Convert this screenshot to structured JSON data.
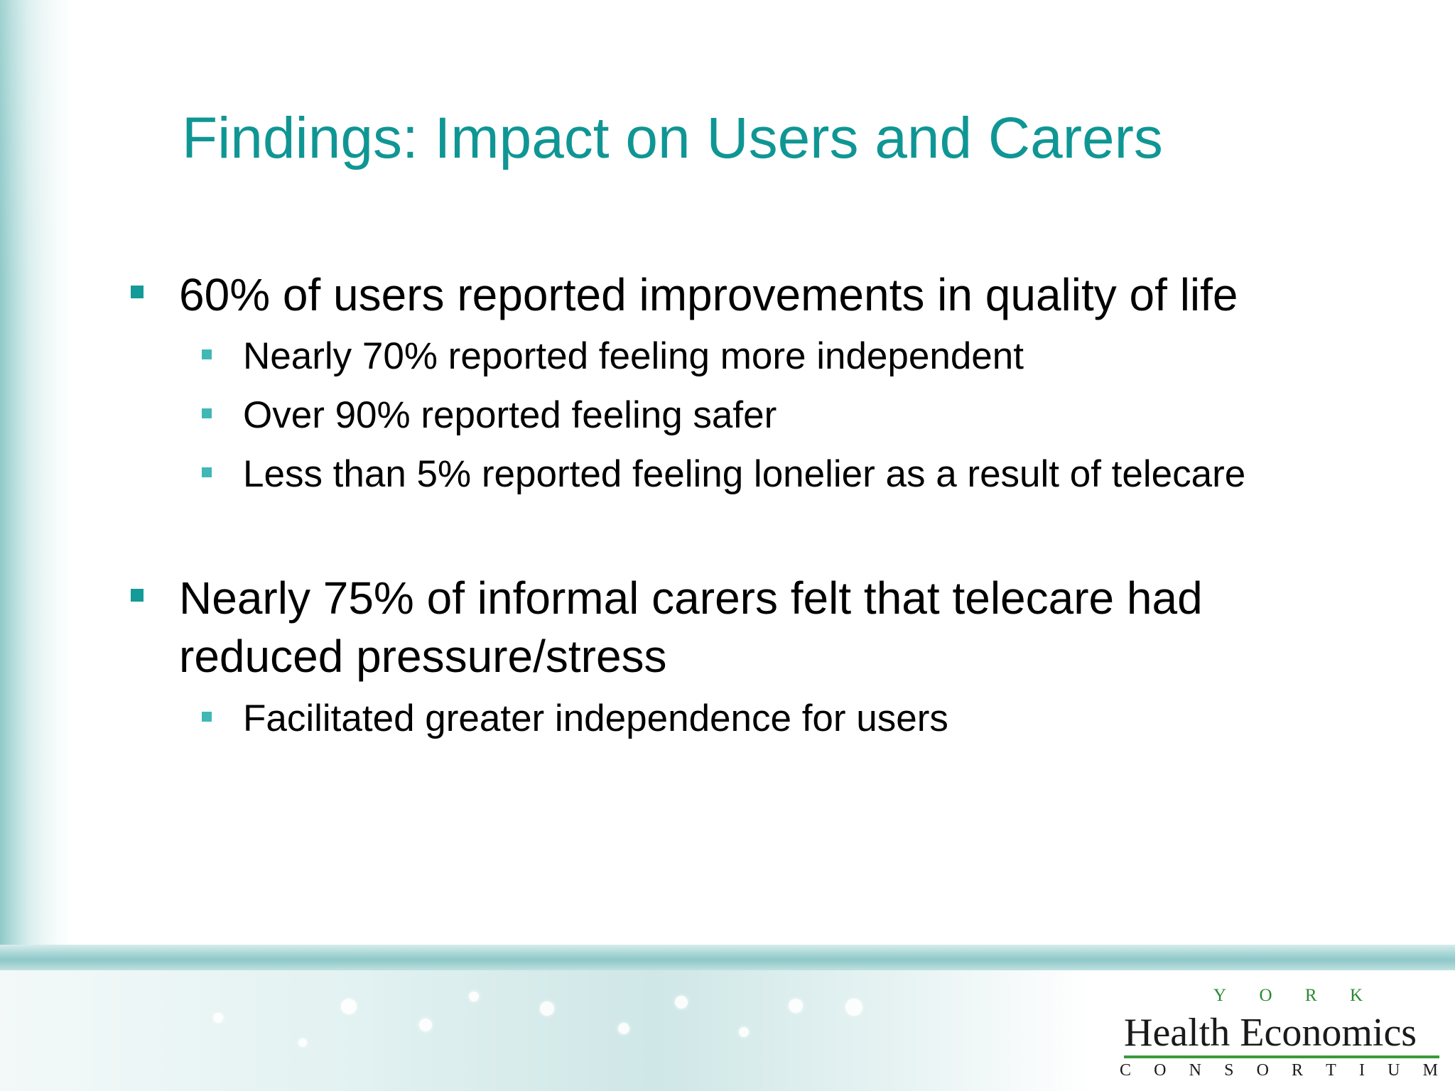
{
  "slide": {
    "title": "Findings: Impact on Users and Carers",
    "bullets": [
      {
        "text": "60% of users reported improvements in quality of life",
        "sub": [
          "Nearly 70% reported feeling more independent",
          "Over 90% reported feeling safer",
          "Less than 5% reported feeling lonelier as a result of telecare"
        ]
      },
      {
        "text": "Nearly 75% of informal carers felt that telecare had reduced pressure/stress",
        "sub": [
          "Facilitated greater independence for users"
        ]
      }
    ]
  },
  "logo": {
    "top_letters": [
      "Y",
      "O",
      "R",
      "K"
    ],
    "name": "Health Economics",
    "bottom_letters": [
      "C",
      "O",
      "N",
      "S",
      "O",
      "R",
      "T",
      "I",
      "U",
      "M"
    ],
    "text_color": "#1a1a1a",
    "accent_color": "#3a9a3a"
  },
  "colors": {
    "title": "#0f9694",
    "bullet_marker": "#149a98",
    "sub_bullet_marker": "#3fb8b6",
    "body_text": "#000000"
  }
}
